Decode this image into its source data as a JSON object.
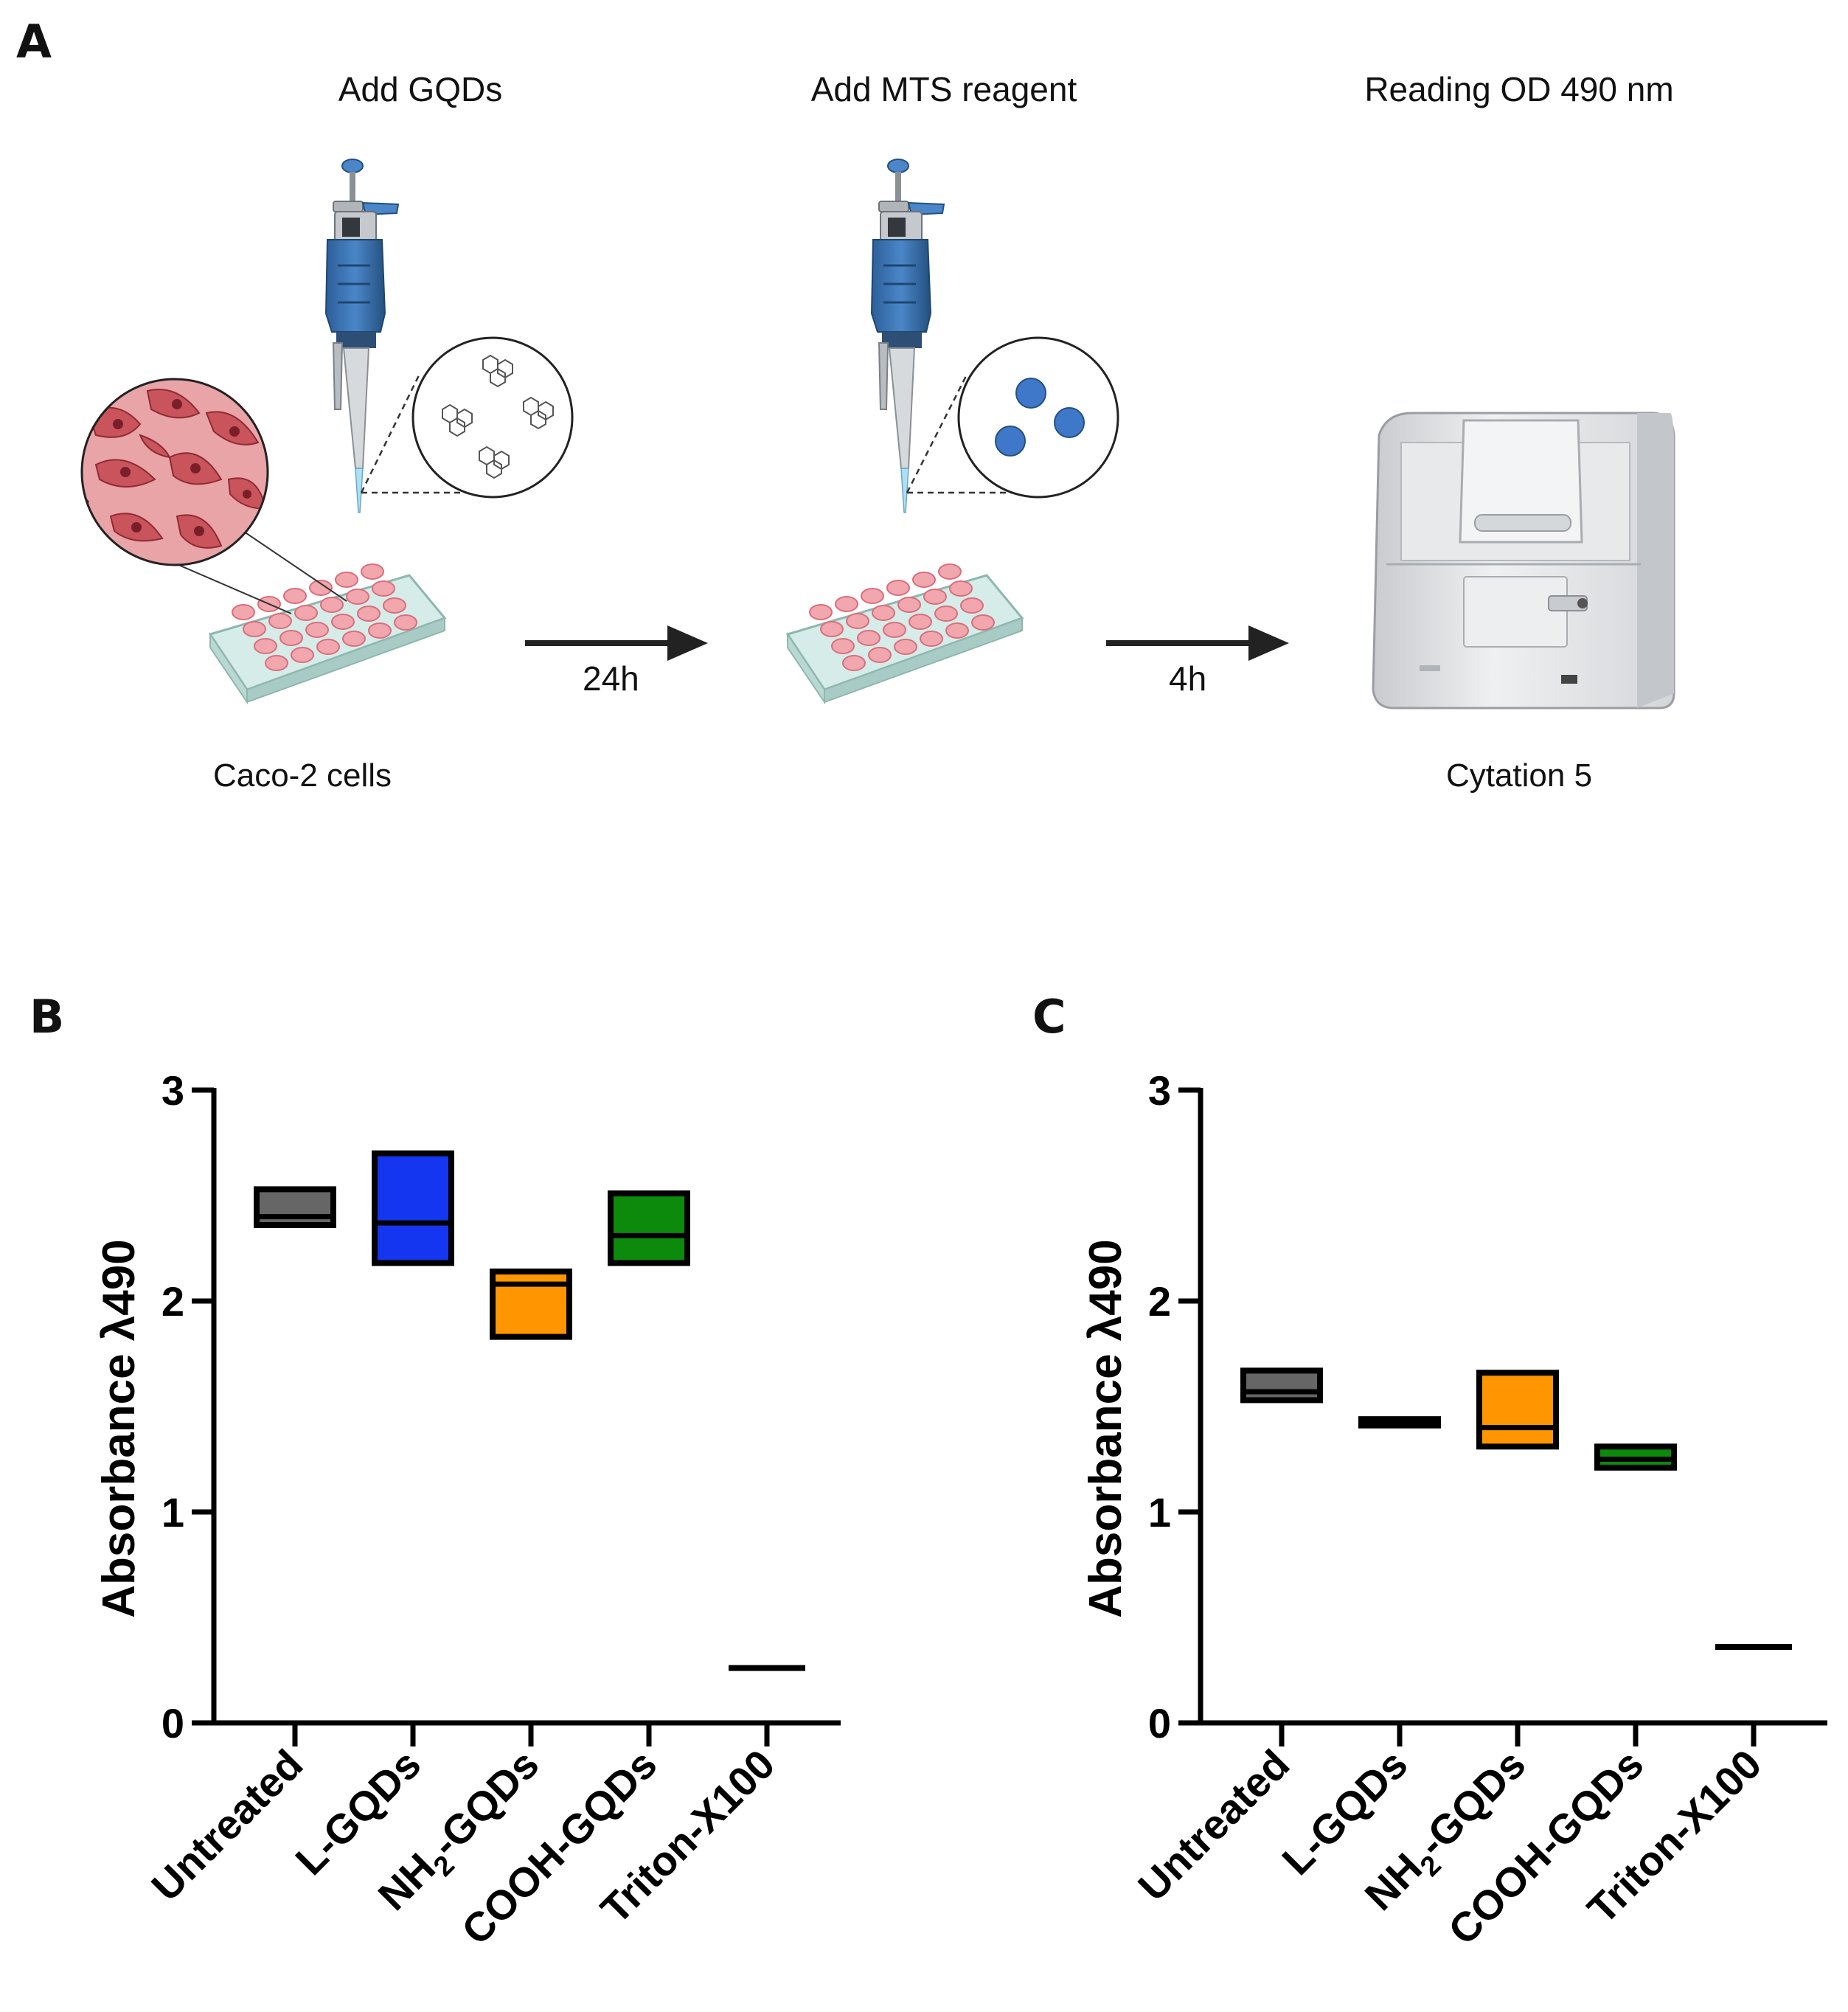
{
  "panels": {
    "a": {
      "letter": "A",
      "steps": [
        "Add GQDs",
        "Add MTS reagent",
        "Reading OD 490 nm"
      ],
      "arrow1_label": "24h",
      "arrow2_label": "4h",
      "caption_cells": "Caco-2 cells",
      "caption_reader": "Cytation 5"
    },
    "b": {
      "letter": "B"
    },
    "c": {
      "letter": "C"
    }
  },
  "chart_data": [
    {
      "type": "floating-bar",
      "panel": "B",
      "title": "",
      "ylabel": "Absorbance λ490",
      "ylim": [
        0,
        3
      ],
      "yticks": [
        "0",
        "1",
        "2",
        "3"
      ],
      "categories": [
        "Untreated",
        "L-GQDs",
        "NH2-GQDs",
        "COOH-GQDs",
        "Triton-X100"
      ],
      "colors": [
        "#666666",
        "#1536f0",
        "#ff9500",
        "#0b8a0b",
        "#000000"
      ],
      "min": [
        2.36,
        2.18,
        1.83,
        2.18,
        0.26
      ],
      "max": [
        2.53,
        2.7,
        2.14,
        2.51,
        0.26
      ],
      "mean": [
        2.4,
        2.37,
        2.08,
        2.31,
        0.26
      ]
    },
    {
      "type": "floating-bar",
      "panel": "C",
      "title": "",
      "ylabel": "Absorbance λ490",
      "ylim": [
        0,
        3
      ],
      "yticks": [
        "0",
        "1",
        "2",
        "3"
      ],
      "categories": [
        "Untreated",
        "L-GQDs",
        "NH2-GQDs",
        "COOH-GQDs",
        "Triton-X100"
      ],
      "colors": [
        "#666666",
        "#000000",
        "#ff9500",
        "#0b8a0b",
        "#000000"
      ],
      "min": [
        1.53,
        1.41,
        1.31,
        1.21,
        0.36
      ],
      "max": [
        1.67,
        1.44,
        1.66,
        1.31,
        0.36
      ],
      "mean": [
        1.57,
        1.42,
        1.4,
        1.25,
        0.36
      ]
    }
  ]
}
